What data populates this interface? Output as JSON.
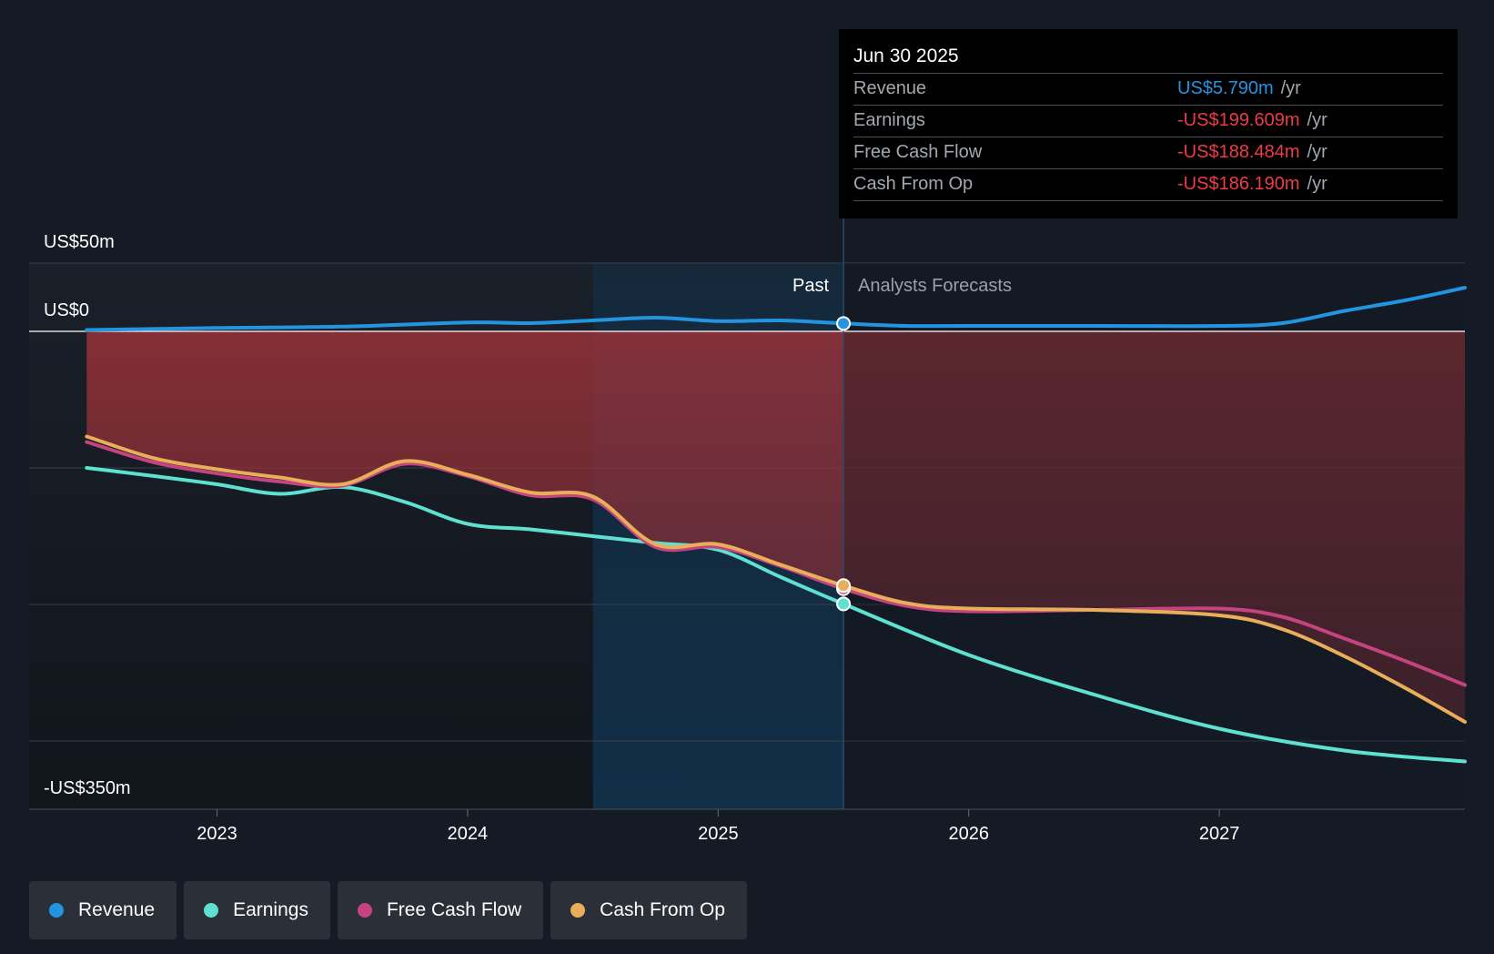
{
  "colors": {
    "revenue": "#2394df",
    "earnings": "#5ee1d1",
    "free_cash_flow": "#c5437f",
    "cash_from_op": "#e9ae5a",
    "background": "#151b24"
  },
  "chart_data": {
    "type": "line",
    "ylim": [
      -350,
      50
    ],
    "xlim": [
      2022.25,
      2027.98
    ],
    "y_axis_labels": [
      "US$50m",
      "US$0",
      "-US$350m"
    ],
    "gridlines": [
      50,
      0,
      -100,
      -200,
      -300
    ],
    "x_ticks": [
      {
        "value": 2023.0,
        "label": "2023"
      },
      {
        "value": 2024.0,
        "label": "2024"
      },
      {
        "value": 2025.0,
        "label": "2025"
      },
      {
        "value": 2026.0,
        "label": "2026"
      },
      {
        "value": 2027.0,
        "label": "2027"
      }
    ],
    "past_label": "Past",
    "forecast_label": "Analysts Forecasts",
    "divider_x": 2025.5,
    "highlight_start_x": 2024.5,
    "series": [
      {
        "name": "Revenue",
        "key": "revenue",
        "points": [
          [
            2022.48,
            1
          ],
          [
            2023,
            2.5
          ],
          [
            2023.5,
            3.5
          ],
          [
            2024,
            6.5
          ],
          [
            2024.25,
            6
          ],
          [
            2024.5,
            8
          ],
          [
            2024.75,
            10
          ],
          [
            2025,
            7.5
          ],
          [
            2025.25,
            8
          ],
          [
            2025.5,
            5.79
          ],
          [
            2025.75,
            4
          ],
          [
            2026,
            4
          ],
          [
            2026.5,
            4
          ],
          [
            2027,
            4
          ],
          [
            2027.25,
            6
          ],
          [
            2027.5,
            15
          ],
          [
            2027.75,
            23
          ],
          [
            2027.98,
            32
          ]
        ]
      },
      {
        "name": "Earnings",
        "key": "earnings",
        "points": [
          [
            2022.48,
            -100
          ],
          [
            2022.75,
            -106
          ],
          [
            2023,
            -112
          ],
          [
            2023.25,
            -119
          ],
          [
            2023.5,
            -114
          ],
          [
            2023.75,
            -125
          ],
          [
            2024,
            -141
          ],
          [
            2024.25,
            -145
          ],
          [
            2024.5,
            -150
          ],
          [
            2024.75,
            -155
          ],
          [
            2025,
            -160
          ],
          [
            2025.25,
            -180
          ],
          [
            2025.5,
            -199.609
          ],
          [
            2026,
            -237
          ],
          [
            2026.5,
            -266
          ],
          [
            2027,
            -291
          ],
          [
            2027.5,
            -307
          ],
          [
            2027.98,
            -315
          ]
        ]
      },
      {
        "name": "Free Cash Flow",
        "key": "free_cash_flow",
        "points": [
          [
            2022.48,
            -81
          ],
          [
            2022.75,
            -96
          ],
          [
            2023,
            -104
          ],
          [
            2023.25,
            -110
          ],
          [
            2023.5,
            -113
          ],
          [
            2023.75,
            -97
          ],
          [
            2024,
            -106
          ],
          [
            2024.25,
            -120
          ],
          [
            2024.5,
            -123
          ],
          [
            2024.75,
            -158
          ],
          [
            2025,
            -158
          ],
          [
            2025.25,
            -172
          ],
          [
            2025.5,
            -188.484
          ],
          [
            2025.75,
            -201
          ],
          [
            2026,
            -205
          ],
          [
            2026.5,
            -204
          ],
          [
            2027,
            -203
          ],
          [
            2027.25,
            -209
          ],
          [
            2027.5,
            -225
          ],
          [
            2027.75,
            -242
          ],
          [
            2027.98,
            -259
          ]
        ]
      },
      {
        "name": "Cash From Op",
        "key": "cash_from_op",
        "points": [
          [
            2022.48,
            -77
          ],
          [
            2022.75,
            -93
          ],
          [
            2023,
            -101
          ],
          [
            2023.25,
            -107
          ],
          [
            2023.5,
            -112
          ],
          [
            2023.75,
            -95
          ],
          [
            2024,
            -105
          ],
          [
            2024.25,
            -118
          ],
          [
            2024.5,
            -121
          ],
          [
            2024.75,
            -156
          ],
          [
            2025,
            -156
          ],
          [
            2025.25,
            -171
          ],
          [
            2025.5,
            -186.19
          ],
          [
            2025.75,
            -199
          ],
          [
            2026,
            -203
          ],
          [
            2026.5,
            -204
          ],
          [
            2027,
            -208
          ],
          [
            2027.25,
            -218
          ],
          [
            2027.5,
            -238
          ],
          [
            2027.75,
            -262
          ],
          [
            2027.98,
            -286
          ]
        ]
      }
    ]
  },
  "tooltip": {
    "date": "Jun 30 2025",
    "rows": [
      {
        "name": "Revenue",
        "value": "US$5.790m",
        "unit": "/yr"
      },
      {
        "name": "Earnings",
        "value": "-US$199.609m",
        "unit": "/yr"
      },
      {
        "name": "Free Cash Flow",
        "value": "-US$188.484m",
        "unit": "/yr"
      },
      {
        "name": "Cash From Op",
        "value": "-US$186.190m",
        "unit": "/yr"
      }
    ]
  },
  "legend": [
    {
      "label": "Revenue",
      "key": "revenue"
    },
    {
      "label": "Earnings",
      "key": "earnings"
    },
    {
      "label": "Free Cash Flow",
      "key": "free_cash_flow"
    },
    {
      "label": "Cash From Op",
      "key": "cash_from_op"
    }
  ]
}
